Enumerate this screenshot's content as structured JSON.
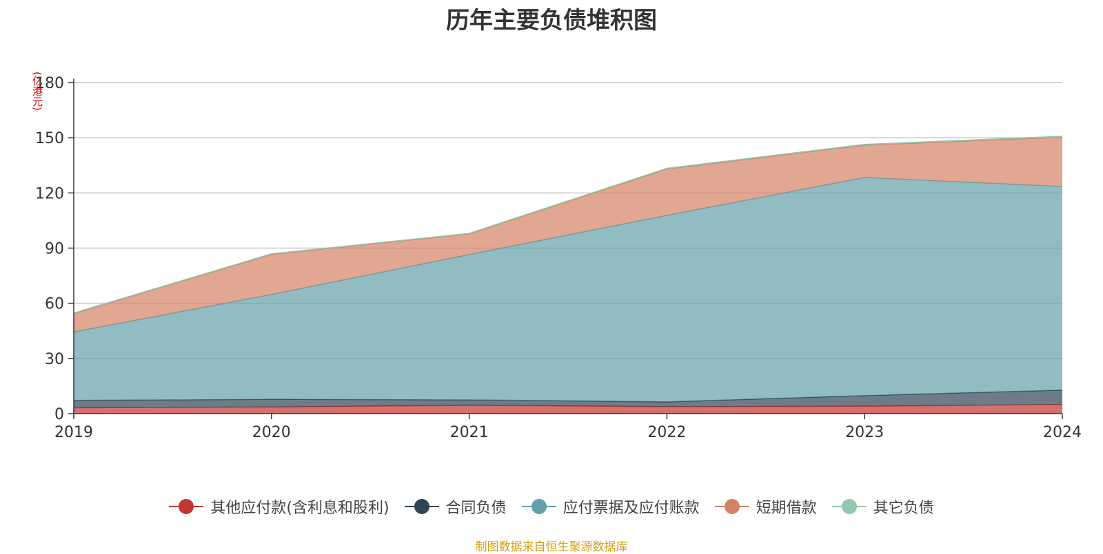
{
  "title": "历年主要负债堆积图",
  "unit": "(亿港元)",
  "source_note": "制图数据来自恒生聚源数据库",
  "chart_data": {
    "type": "area",
    "stacked": true,
    "title": "历年主要负债堆积图",
    "ylabel": "(亿港元)",
    "x": [
      "2019",
      "2020",
      "2021",
      "2022",
      "2023",
      "2024"
    ],
    "ylim": [
      0,
      180
    ],
    "yticks": [
      0,
      30,
      60,
      90,
      120,
      150,
      180
    ],
    "grid": true,
    "legend_position": "bottom",
    "series": [
      {
        "name": "其他应付款(含利息和股利)",
        "color": "#c23531",
        "values": [
          3.2,
          3.6,
          4.5,
          3.8,
          4.0,
          5.0
        ]
      },
      {
        "name": "合同负债",
        "color": "#2f4554",
        "values": [
          4.0,
          4.2,
          3.0,
          2.6,
          5.8,
          7.8
        ]
      },
      {
        "name": "应付票据及应付账款",
        "color": "#61a0a8",
        "values": [
          37.2,
          57.0,
          79.0,
          101.4,
          118.6,
          110.7
        ]
      },
      {
        "name": "短期借款",
        "color": "#d48265",
        "values": [
          10.0,
          21.8,
          11.2,
          25.2,
          17.6,
          26.8
        ]
      },
      {
        "name": "其它负债",
        "color": "#91c7ae",
        "values": [
          0.3,
          0.3,
          0.3,
          0.4,
          0.4,
          0.5
        ]
      }
    ]
  }
}
